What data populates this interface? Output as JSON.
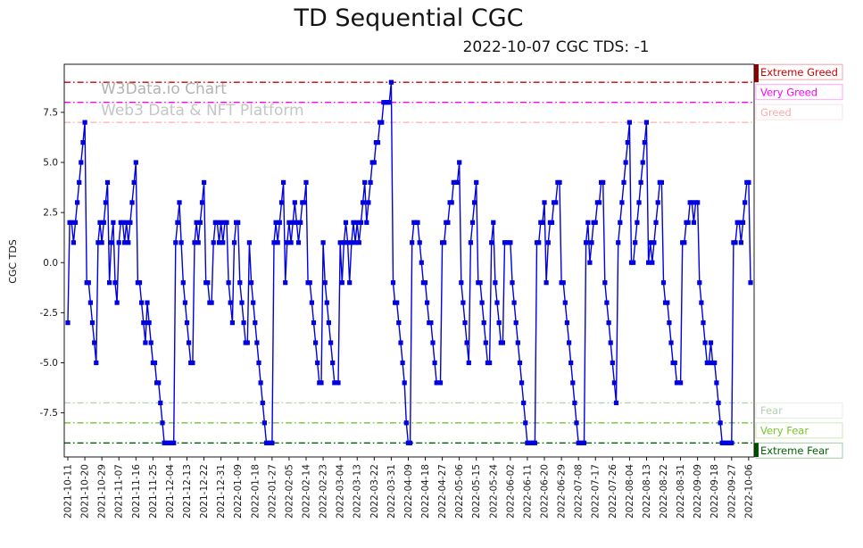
{
  "title": "TD Sequential CGC",
  "subtitle": "2022-10-07 CGC TDS: -1",
  "watermark": {
    "line1": "W3Data.io Chart",
    "line2": "Web3 Data & NFT Platform"
  },
  "chart_data": {
    "type": "line",
    "title": "TD Sequential CGC",
    "subtitle": "2022-10-07 CGC TDS: -1",
    "xlabel": "",
    "ylabel": "CGC TDS",
    "ylim": [
      -9.7,
      9.9
    ],
    "grid": false,
    "legend": null,
    "y_ticks": [
      7.5,
      5.0,
      2.5,
      0.0,
      -2.5,
      -5.0,
      -7.5
    ],
    "x_tick_every": 9,
    "x_tick_labels": [
      "2021-10-11",
      "2021-10-20",
      "2021-10-29",
      "2021-11-07",
      "2021-11-16",
      "2021-11-25",
      "2021-12-04",
      "2021-12-13",
      "2021-12-22",
      "2021-12-31",
      "2022-01-09",
      "2022-01-18",
      "2022-01-27",
      "2022-02-05",
      "2022-02-14",
      "2022-02-23",
      "2022-03-04",
      "2022-03-13",
      "2022-03-22",
      "2022-03-31",
      "2022-04-09",
      "2022-04-18",
      "2022-04-27",
      "2022-05-06",
      "2022-05-15",
      "2022-05-24",
      "2022-06-02",
      "2022-06-11",
      "2022-06-20",
      "2022-06-29",
      "2022-07-08",
      "2022-07-17",
      "2022-07-26",
      "2022-08-04",
      "2022-08-13",
      "2022-08-22",
      "2022-08-31",
      "2022-09-09",
      "2022-09-18",
      "2022-09-27",
      "2022-10-06"
    ],
    "series": [
      {
        "name": "CGC TDS",
        "color": "#0000e0",
        "marker": "square",
        "values": [
          -3,
          2,
          2,
          1,
          2,
          3,
          4,
          5,
          6,
          7,
          -1,
          -1,
          -2,
          -3,
          -4,
          -5,
          1,
          2,
          1,
          2,
          3,
          4,
          -1,
          1,
          2,
          -1,
          -2,
          1,
          2,
          2,
          1,
          2,
          1,
          2,
          3,
          4,
          5,
          -1,
          -1,
          -2,
          -3,
          -4,
          -2,
          -3,
          -4,
          -5,
          -5,
          -6,
          -6,
          -7,
          -8,
          -9,
          -9,
          -9,
          -9,
          -9,
          -9,
          1,
          2,
          3,
          1,
          -1,
          -2,
          -3,
          -4,
          -5,
          -5,
          1,
          2,
          1,
          2,
          3,
          4,
          -1,
          -1,
          -2,
          -2,
          1,
          2,
          2,
          1,
          2,
          1,
          2,
          2,
          -1,
          -2,
          -3,
          1,
          2,
          2,
          -1,
          -2,
          -3,
          -4,
          -4,
          1,
          -1,
          -2,
          -3,
          -4,
          -5,
          -6,
          -7,
          -8,
          -9,
          -9,
          -9,
          -9,
          1,
          2,
          1,
          2,
          3,
          4,
          -1,
          1,
          2,
          1,
          2,
          3,
          2,
          1,
          2,
          3,
          3,
          4,
          -1,
          -1,
          -2,
          -3,
          -4,
          -5,
          -6,
          -6,
          1,
          -1,
          -2,
          -3,
          -4,
          -5,
          -6,
          -6,
          -6,
          1,
          -1,
          1,
          2,
          1,
          -1,
          1,
          2,
          1,
          2,
          1,
          2,
          3,
          4,
          2,
          3,
          4,
          5,
          5,
          6,
          6,
          7,
          7,
          8,
          8,
          8,
          8,
          9,
          -1,
          -2,
          -2,
          -3,
          -4,
          -5,
          -6,
          -8,
          -9,
          -9,
          1,
          2,
          2,
          2,
          1,
          0,
          -1,
          -1,
          -2,
          -3,
          -3,
          -4,
          -5,
          -6,
          -6,
          -6,
          1,
          1,
          2,
          2,
          3,
          3,
          4,
          4,
          4,
          5,
          -1,
          -2,
          -3,
          -4,
          -5,
          1,
          2,
          3,
          4,
          -1,
          -1,
          -2,
          -3,
          -4,
          -5,
          -5,
          1,
          2,
          -1,
          -2,
          -3,
          -4,
          -4,
          1,
          1,
          1,
          1,
          -1,
          -2,
          -3,
          -4,
          -5,
          -6,
          -7,
          -8,
          -9,
          -9,
          -9,
          -9,
          -9,
          1,
          1,
          2,
          2,
          3,
          -1,
          1,
          2,
          2,
          3,
          3,
          4,
          4,
          -1,
          -1,
          -2,
          -3,
          -4,
          -5,
          -6,
          -7,
          -8,
          -9,
          -9,
          -9,
          -9,
          1,
          2,
          0,
          1,
          2,
          2,
          3,
          3,
          4,
          4,
          -1,
          -2,
          -3,
          -4,
          -5,
          -6,
          -7,
          1,
          2,
          3,
          4,
          5,
          6,
          7,
          0,
          0,
          1,
          2,
          3,
          4,
          5,
          6,
          7,
          0,
          1,
          0,
          1,
          2,
          3,
          4,
          4,
          -1,
          -2,
          -2,
          -3,
          -4,
          -5,
          -5,
          -6,
          -6,
          -6,
          1,
          1,
          2,
          2,
          3,
          3,
          2,
          3,
          3,
          -1,
          -2,
          -3,
          -4,
          -5,
          -5,
          -4,
          -5,
          -5,
          -6,
          -7,
          -8,
          -9,
          -9,
          -9,
          -9,
          -9,
          -9,
          1,
          1,
          2,
          2,
          1,
          2,
          3,
          4,
          4,
          -1
        ]
      }
    ],
    "thresholds": [
      {
        "label": "Extreme Greed",
        "value": 9,
        "color": "#cc0000",
        "edge_bar": true,
        "bar_color": "#8b0000"
      },
      {
        "label": "Very Greed",
        "value": 8,
        "color": "#ff00ff",
        "edge_bar": false,
        "bar_color": ""
      },
      {
        "label": "Greed",
        "value": 7,
        "color": "#ffabab",
        "edge_bar": false,
        "bar_color": ""
      },
      {
        "label": "Fear",
        "value": -7,
        "color": "#b2d2b2",
        "edge_bar": false,
        "bar_color": ""
      },
      {
        "label": "Very Fear",
        "value": -8,
        "color": "#79c42c",
        "edge_bar": false,
        "bar_color": ""
      },
      {
        "label": "Extreme Fear",
        "value": -9,
        "color": "#006400",
        "edge_bar": true,
        "bar_color": "#004d00"
      }
    ]
  }
}
